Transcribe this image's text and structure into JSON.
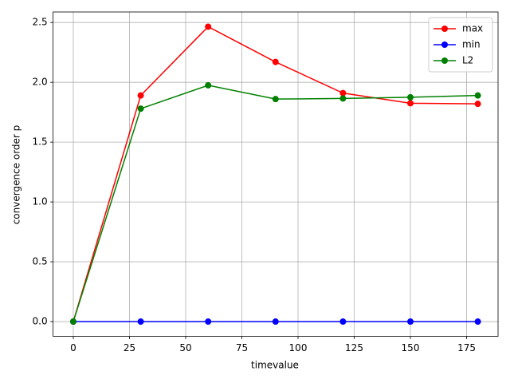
{
  "chart_data": {
    "type": "line",
    "x": [
      0,
      30,
      60,
      90,
      120,
      150,
      180
    ],
    "series": [
      {
        "name": "max",
        "color": "#ff0000",
        "values": [
          0,
          1.89,
          2.465,
          2.17,
          1.91,
          1.825,
          1.82
        ]
      },
      {
        "name": "min",
        "color": "#0000ff",
        "values": [
          0,
          0,
          0,
          0,
          0,
          0,
          0
        ]
      },
      {
        "name": "L2",
        "color": "#008000",
        "values": [
          0,
          1.78,
          1.975,
          1.86,
          1.865,
          1.875,
          1.89
        ]
      }
    ],
    "xlabel": "timevalue",
    "ylabel": "convergence order p",
    "xlim": [
      -9,
      189
    ],
    "ylim": [
      -0.123,
      2.588
    ],
    "xticks": [
      0,
      25,
      50,
      75,
      100,
      125,
      150,
      175
    ],
    "yticks": [
      {
        "value": 0,
        "label": "0.0"
      },
      {
        "value": 0.5,
        "label": "0.5"
      },
      {
        "value": 1,
        "label": "1.0"
      },
      {
        "value": 1.5,
        "label": "1.5"
      },
      {
        "value": 2,
        "label": "2.0"
      },
      {
        "value": 2.5,
        "label": "2.5"
      }
    ],
    "grid": true,
    "legend": "upper right"
  }
}
